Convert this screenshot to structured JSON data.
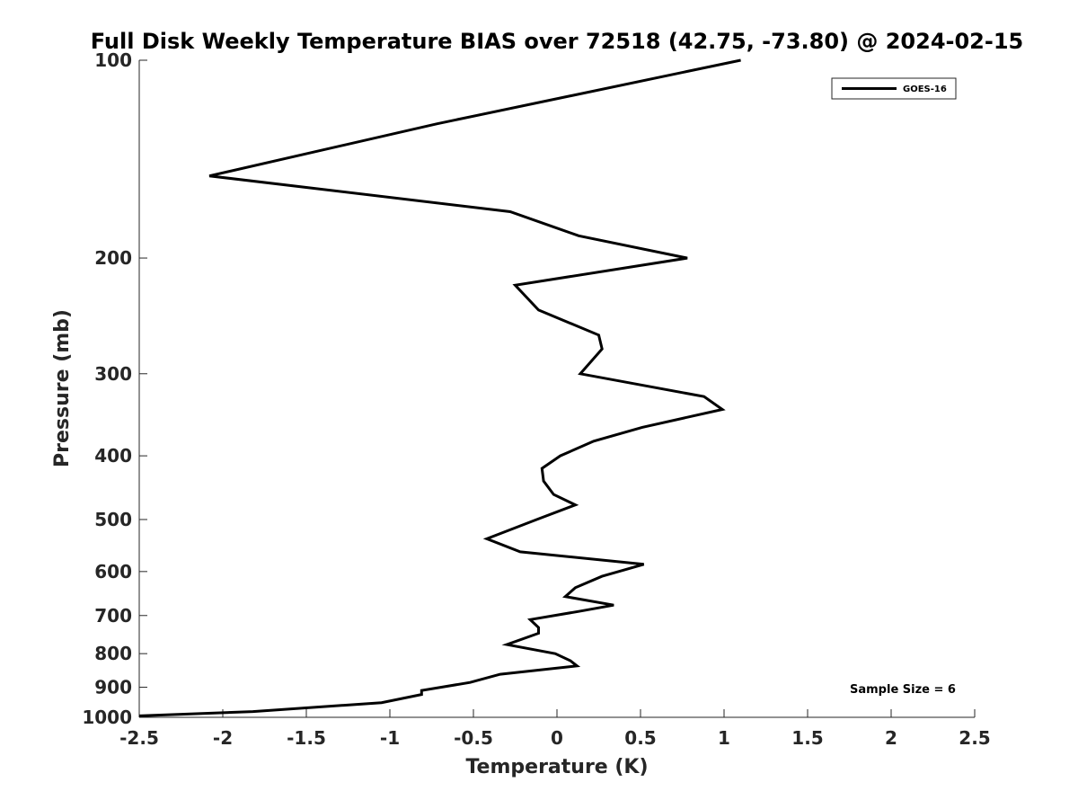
{
  "chart_data": {
    "type": "line",
    "title": "Full Disk Weekly Temperature BIAS over 72518 (42.75, -73.80) @ 2024-02-15",
    "xlabel": "Temperature (K)",
    "ylabel": "Pressure (mb)",
    "xlim": [
      -2.5,
      2.5
    ],
    "ylim": [
      100,
      1000
    ],
    "y_scale": "log",
    "y_reversed": true,
    "grid": false,
    "legend_position": "top-right",
    "x_ticks": [
      -2.5,
      -2,
      -1.5,
      -1,
      -0.5,
      0,
      0.5,
      1,
      1.5,
      2,
      2.5
    ],
    "x_tick_labels": [
      "-2.5",
      "-2",
      "-1.5",
      "-1",
      "-0.5",
      "0",
      "0.5",
      "1",
      "1.5",
      "2",
      "2.5"
    ],
    "y_ticks": [
      100,
      200,
      300,
      400,
      500,
      600,
      700,
      800,
      900,
      1000
    ],
    "y_tick_labels": [
      "100",
      "200",
      "300",
      "400",
      "500",
      "600",
      "700",
      "800",
      "900",
      "1000"
    ],
    "series": [
      {
        "name": "GOES-16",
        "color": "#000000",
        "x": [
          1.1,
          -0.72,
          -2.08,
          -0.28,
          0.13,
          0.78,
          -0.25,
          -0.11,
          0.25,
          0.27,
          0.14,
          0.88,
          0.99,
          0.51,
          0.22,
          0.02,
          -0.09,
          -0.08,
          -0.02,
          0.11,
          -0.12,
          -0.42,
          -0.22,
          0.52,
          0.27,
          0.11,
          0.05,
          0.34,
          0.13,
          -0.16,
          -0.11,
          -0.11,
          -0.3,
          -0.01,
          0.08,
          0.12,
          -0.34,
          -0.52,
          -0.81,
          -0.81,
          -1.05,
          -1.82,
          -2.5
        ],
        "y": [
          100,
          125,
          150,
          170,
          185,
          200,
          220,
          240,
          262,
          275,
          300,
          325,
          340,
          362,
          380,
          400,
          418,
          437,
          458,
          475,
          500,
          535,
          560,
          585,
          610,
          635,
          655,
          675,
          690,
          710,
          730,
          745,
          775,
          800,
          820,
          835,
          860,
          885,
          910,
          923,
          950,
          980,
          995
        ]
      }
    ],
    "annotations": [
      {
        "text": "Sample Size = 6"
      }
    ]
  }
}
